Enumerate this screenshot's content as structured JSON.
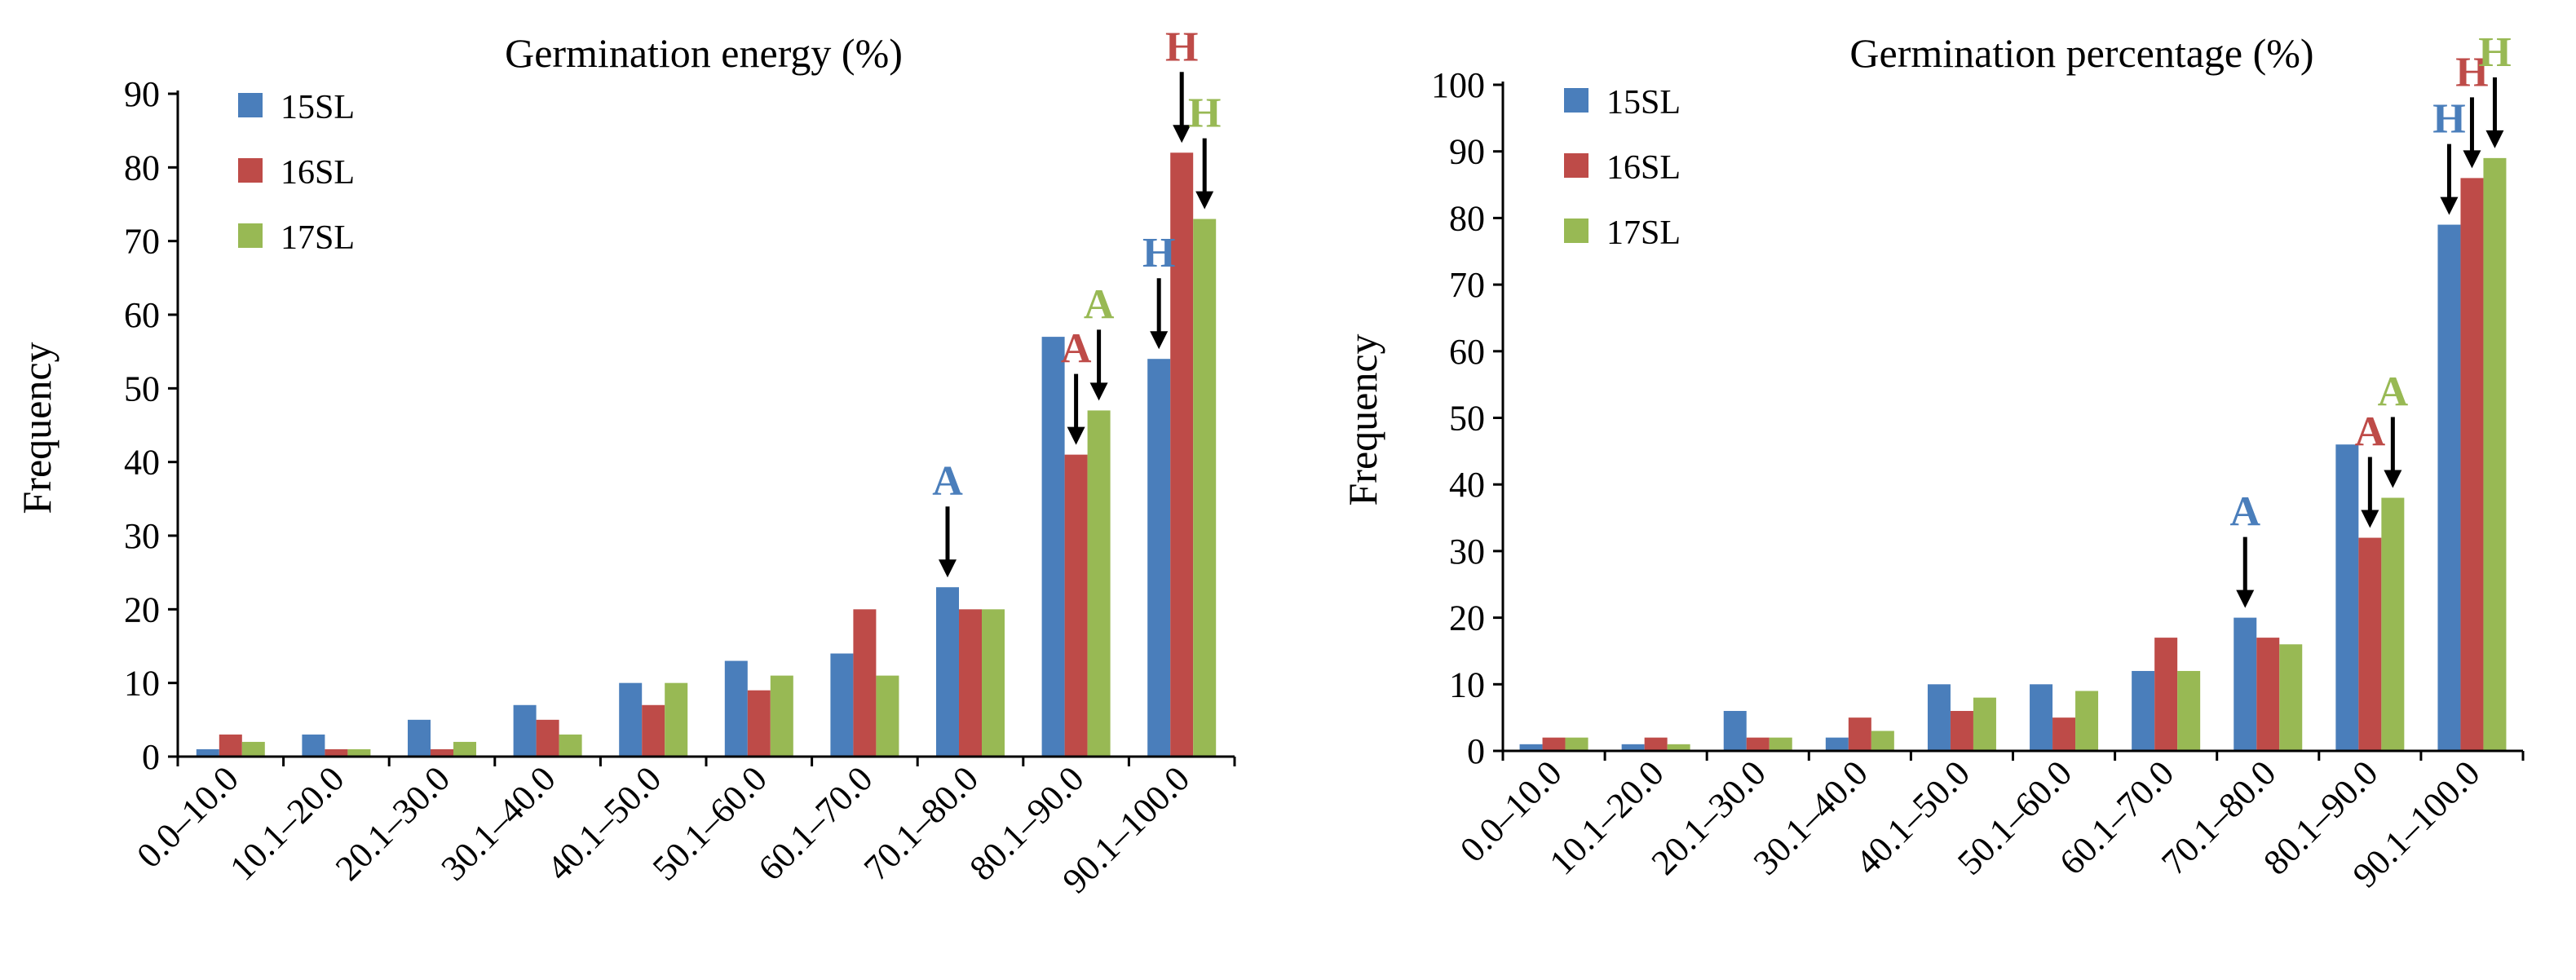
{
  "colors": {
    "s15": "#4A7EBB",
    "s16": "#BE4B48",
    "s17": "#98B954"
  },
  "chart_data": [
    {
      "type": "bar",
      "title": "Germination energy (%)",
      "xlabel": "",
      "ylabel": "Frequency",
      "ylim": [
        0,
        90
      ],
      "yticks": [
        0,
        10,
        20,
        30,
        40,
        50,
        60,
        70,
        80,
        90
      ],
      "categories": [
        "0.0–10.0",
        "10.1–20.0",
        "20.1–30.0",
        "30.1–40.0",
        "40.1–50.0",
        "50.1–60.0",
        "60.1–70.0",
        "70.1–80.0",
        "80.1–90.0",
        "90.1–100.0"
      ],
      "series": [
        {
          "name": "15SL",
          "values": [
            1,
            3,
            5,
            7,
            10,
            13,
            14,
            23,
            57,
            54
          ]
        },
        {
          "name": "16SL",
          "values": [
            3,
            1,
            1,
            5,
            7,
            9,
            20,
            20,
            41,
            82
          ]
        },
        {
          "name": "17SL",
          "values": [
            2,
            1,
            2,
            3,
            10,
            11,
            11,
            20,
            47,
            73
          ]
        }
      ],
      "legend": "top-left",
      "annotations": [
        {
          "label": "A",
          "series": 0,
          "category": 7
        },
        {
          "label": "A",
          "series": 1,
          "category": 8
        },
        {
          "label": "A",
          "series": 2,
          "category": 8
        },
        {
          "label": "H",
          "series": 0,
          "category": 9
        },
        {
          "label": "H",
          "series": 1,
          "category": 9
        },
        {
          "label": "H",
          "series": 2,
          "category": 9
        }
      ]
    },
    {
      "type": "bar",
      "title": "Germination percentage (%)",
      "xlabel": "",
      "ylabel": "Frequency",
      "ylim": [
        0,
        100
      ],
      "yticks": [
        0,
        10,
        20,
        30,
        40,
        50,
        60,
        70,
        80,
        90,
        100
      ],
      "categories": [
        "0.0–10.0",
        "10.1–20.0",
        "20.1–30.0",
        "30.1–40.0",
        "40.1–50.0",
        "50.1–60.0",
        "60.1–70.0",
        "70.1–80.0",
        "80.1–90.0",
        "90.1–100.0"
      ],
      "series": [
        {
          "name": "15SL",
          "values": [
            1,
            1,
            6,
            2,
            10,
            10,
            12,
            20,
            46,
            79
          ]
        },
        {
          "name": "16SL",
          "values": [
            2,
            2,
            2,
            5,
            6,
            5,
            17,
            17,
            32,
            86
          ]
        },
        {
          "name": "17SL",
          "values": [
            2,
            1,
            2,
            3,
            8,
            9,
            12,
            16,
            38,
            89
          ]
        }
      ],
      "legend": "top-left",
      "annotations": [
        {
          "label": "A",
          "series": 0,
          "category": 7
        },
        {
          "label": "A",
          "series": 1,
          "category": 8
        },
        {
          "label": "A",
          "series": 2,
          "category": 8
        },
        {
          "label": "H",
          "series": 0,
          "category": 9
        },
        {
          "label": "H",
          "series": 1,
          "category": 9
        },
        {
          "label": "H",
          "series": 2,
          "category": 9
        }
      ]
    }
  ]
}
